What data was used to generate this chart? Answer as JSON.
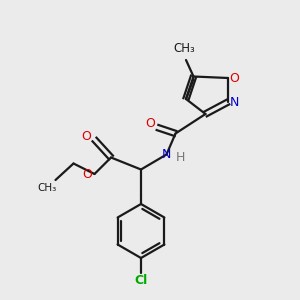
{
  "background_color": "#ebebeb",
  "bond_color": "#1a1a1a",
  "atom_colors": {
    "O": "#dd0000",
    "N": "#0000cc",
    "Cl": "#00aa00",
    "H": "#777777"
  },
  "figsize": [
    3.0,
    3.0
  ],
  "dpi": 100
}
